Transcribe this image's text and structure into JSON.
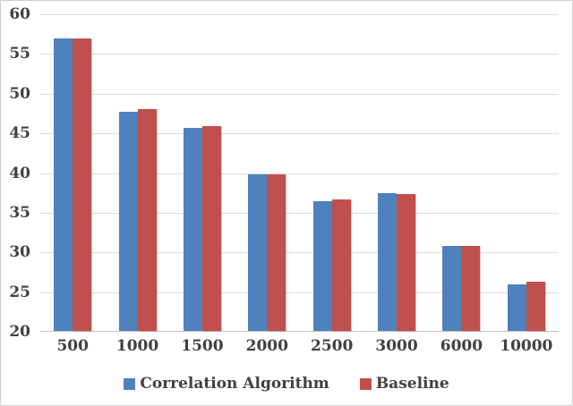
{
  "chart_data": {
    "type": "bar",
    "title": "",
    "xlabel": "",
    "ylabel": "",
    "categories": [
      "500",
      "1000",
      "1500",
      "2000",
      "2500",
      "3000",
      "6000",
      "10000"
    ],
    "series": [
      {
        "name": "Correlation Algorithm",
        "color": "#4F81BD",
        "values": [
          56.8,
          47.6,
          45.6,
          39.7,
          36.3,
          37.3,
          30.7,
          25.9
        ]
      },
      {
        "name": "Baseline",
        "color": "#C0504D",
        "values": [
          56.8,
          48.0,
          45.8,
          39.7,
          36.6,
          37.2,
          30.7,
          26.2
        ]
      }
    ],
    "ylim": [
      20,
      60
    ],
    "y_ticks": [
      20,
      25,
      30,
      35,
      40,
      45,
      50,
      55,
      60
    ],
    "grid": "horizontal",
    "legend_position": "bottom",
    "colors": {
      "gridline": "#dcdcdc",
      "axis_line": "#c3c3c3",
      "tick_text": "#404040",
      "background": "#ffffff"
    }
  }
}
